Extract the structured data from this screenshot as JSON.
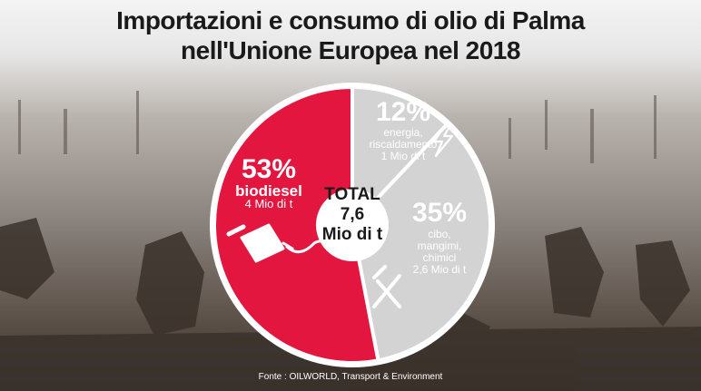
{
  "title": {
    "line1": "Importazioni e consumo di olio di Palma",
    "line2": "nell'Unione Europea nel 2018"
  },
  "colors": {
    "biodiesel": "#e3163f",
    "other": "#d3d3d3",
    "ring": "#ffffff",
    "center": "#ffffff",
    "title": "#1a1a1a"
  },
  "chart_data": {
    "type": "pie",
    "title": "Importazioni e consumo di olio di Palma nell'Unione Europea nel 2018",
    "total_label": [
      "TOTAL",
      "7,6",
      "Mio di t"
    ],
    "slices": [
      {
        "percent_label": "12%",
        "value": 12,
        "amount": 1,
        "desc": [
          "energia,",
          "riscaldamento",
          "1 Mio di t"
        ],
        "icon": "lightning-icon",
        "color": "#d3d3d3"
      },
      {
        "percent_label": "35%",
        "value": 35,
        "amount": 2.6,
        "desc": [
          "cibo,",
          "mangimi,",
          "chimici",
          "2,6 Mio di t"
        ],
        "icon": "fork-knife-icon",
        "color": "#d3d3d3"
      },
      {
        "percent_label": "53%",
        "value": 53,
        "amount": 4,
        "desc": [
          "biodiesel",
          "4 Mio di t"
        ],
        "icon": "fuel-nozzle-icon",
        "color": "#e3163f"
      }
    ]
  },
  "source": "Fonte : OILWORLD, Transport & Environment"
}
